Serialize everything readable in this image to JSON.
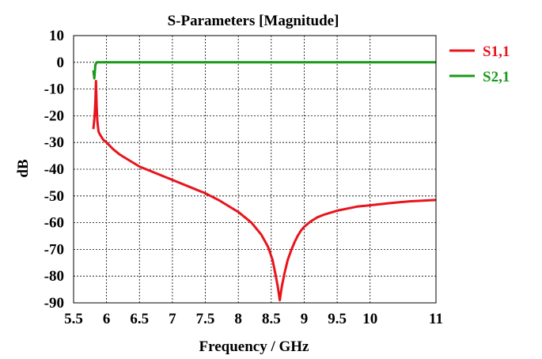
{
  "chart_data": {
    "type": "line",
    "title": "S-Parameters [Magnitude]",
    "xlabel": "Frequency / GHz",
    "ylabel": "dB",
    "xlim": [
      5.5,
      11
    ],
    "ylim": [
      -90,
      10
    ],
    "xticks": [
      "5.5",
      "6",
      "6.5",
      "7",
      "7.5",
      "8",
      "8.5",
      "9",
      "9.5",
      "10",
      "11"
    ],
    "yticks": [
      "10",
      "0",
      "-10",
      "-20",
      "-30",
      "-40",
      "-50",
      "-60",
      "-70",
      "-80",
      "-90"
    ],
    "grid": true,
    "legend_position": "right",
    "series": [
      {
        "name": "S1,1",
        "color": "#e8141c",
        "x": [
          5.8,
          5.82,
          5.83,
          5.84,
          5.85,
          5.86,
          5.88,
          5.9,
          5.95,
          6.0,
          6.1,
          6.2,
          6.3,
          6.5,
          6.7,
          7.0,
          7.3,
          7.5,
          7.7,
          8.0,
          8.2,
          8.35,
          8.45,
          8.52,
          8.57,
          8.6,
          8.63,
          8.66,
          8.7,
          8.75,
          8.8,
          8.85,
          8.9,
          8.95,
          9.0,
          9.1,
          9.2,
          9.3,
          9.5,
          9.8,
          10.0,
          10.3,
          10.6,
          11.0
        ],
        "y": [
          -25,
          -20,
          -15,
          -7,
          -16,
          -22,
          -26,
          -27,
          -29,
          -30,
          -32.5,
          -34.5,
          -36,
          -39,
          -41,
          -44,
          -47,
          -49,
          -51.5,
          -56,
          -60,
          -64.5,
          -69,
          -74,
          -80,
          -84,
          -89,
          -84,
          -79,
          -74,
          -70.5,
          -67.5,
          -65,
          -63,
          -61.5,
          -59.5,
          -58,
          -57,
          -55.5,
          -54,
          -53.5,
          -52.7,
          -52,
          -51.5
        ]
      },
      {
        "name": "S2,1",
        "color": "#1a9a1a",
        "x": [
          5.8,
          5.815,
          5.83,
          5.85,
          5.87,
          5.9,
          6.0,
          7.0,
          8.0,
          9.0,
          10.0,
          11.0
        ],
        "y": [
          -3,
          -6,
          -1,
          0,
          0,
          0,
          0,
          0,
          0,
          0,
          0,
          0
        ]
      }
    ]
  }
}
